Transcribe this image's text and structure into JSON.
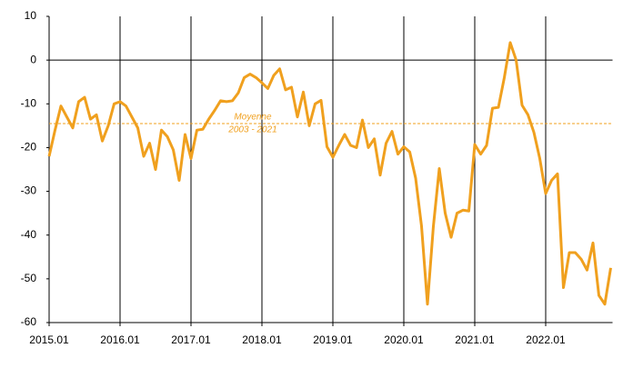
{
  "chart_data": {
    "type": "line",
    "categories": [
      "2015.01",
      null,
      null,
      null,
      null,
      null,
      null,
      null,
      null,
      null,
      null,
      null,
      "2016.01",
      null,
      null,
      null,
      null,
      null,
      null,
      null,
      null,
      null,
      null,
      null,
      "2017.01",
      null,
      null,
      null,
      null,
      null,
      null,
      null,
      null,
      null,
      null,
      null,
      "2018.01",
      null,
      null,
      null,
      null,
      null,
      null,
      null,
      null,
      null,
      null,
      null,
      "2019.01",
      null,
      null,
      null,
      null,
      null,
      null,
      null,
      null,
      null,
      null,
      null,
      "2020.01",
      null,
      null,
      null,
      null,
      null,
      null,
      null,
      null,
      null,
      null,
      null,
      "2021.01",
      null,
      null,
      null,
      null,
      null,
      null,
      null,
      null,
      null,
      null,
      null,
      "2022.01",
      null,
      null,
      null,
      null,
      null,
      null,
      null,
      null,
      null,
      null,
      null
    ],
    "values": [
      -22,
      -16,
      -10.5,
      -13,
      -15.5,
      -9.5,
      -8.5,
      -13.5,
      -12.5,
      -18.5,
      -15,
      -10,
      -9.5,
      -10.5,
      -13,
      -15.5,
      -22,
      -19,
      -25,
      -16,
      -17.5,
      -20.5,
      -27.5,
      -17,
      -22.5,
      -16,
      -15.8,
      -13.5,
      -11.5,
      -9.3,
      -9.5,
      -9.3,
      -7.5,
      -4,
      -3.2,
      -4,
      -5.2,
      -6.5,
      -3.5,
      -2,
      -6.8,
      -6.2,
      -13,
      -7.3,
      -15,
      -10,
      -9.2,
      -19.8,
      -22.2,
      -19.5,
      -17,
      -19.5,
      -20,
      -13.7,
      -20,
      -18,
      -26.3,
      -19,
      -16.3,
      -21.5,
      -19.8,
      -21,
      -27,
      -38,
      -55.8,
      -38,
      -24.8,
      -35,
      -40.5,
      -35,
      -34.3,
      -34.5,
      -19.3,
      -21.5,
      -19.5,
      -11,
      -10.8,
      -4,
      4,
      0,
      -10.3,
      -12.5,
      -16.5,
      -22.5,
      -30.5,
      -27.5,
      -26,
      -52,
      -44,
      -44,
      -45.5,
      -48,
      -41.8,
      -53.8,
      -55.8,
      -47.5
    ],
    "color": "#f0a01e",
    "ylim": [
      -60,
      10
    ],
    "yticks": [
      -60,
      -50,
      -40,
      -30,
      -20,
      -10,
      0,
      10
    ],
    "reference_line": {
      "value": -14.5,
      "label": [
        "Moyenne",
        "2003 - 2021"
      ]
    }
  }
}
